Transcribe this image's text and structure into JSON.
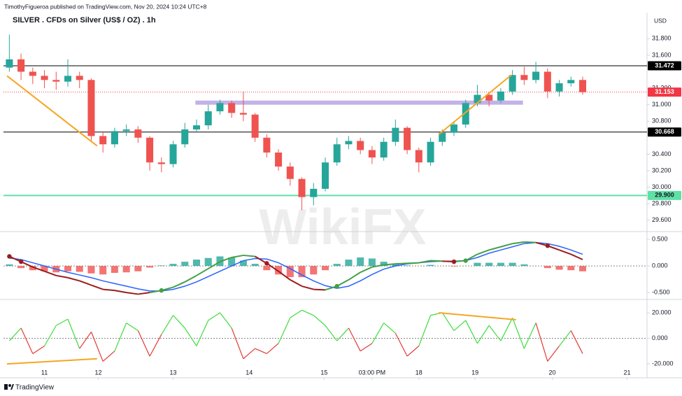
{
  "header": {
    "published": "TimothyFigueroa published on TradingView.com, Nov 20, 2024 10:24 UTC+8",
    "currency": "USD",
    "brand": "TradingView",
    "watermark": "WikiFX"
  },
  "chart_data": [
    {
      "type": "candlestick",
      "title": "SILVER . CFDs on Silver (US$ / OZ) . 1h",
      "xlim": [
        -0.5,
        54.5
      ],
      "ylim": [
        29.47,
        32.1
      ],
      "yticks": [
        {
          "value": 31.8,
          "label": "31.800"
        },
        {
          "value": 31.6,
          "label": "31.600"
        },
        {
          "value": 31.2,
          "label": "31.200"
        },
        {
          "value": 31.0,
          "label": "31.000"
        },
        {
          "value": 30.8,
          "label": "30.800"
        },
        {
          "value": 30.4,
          "label": "30.400"
        },
        {
          "value": 30.2,
          "label": "30.200"
        },
        {
          "value": 30.0,
          "label": "30.000"
        },
        {
          "value": 29.8,
          "label": "29.800"
        },
        {
          "value": 29.6,
          "label": "29.600"
        }
      ],
      "open": [
        31.45,
        31.55,
        31.4,
        31.35,
        31.3,
        31.28,
        31.35,
        31.3,
        30.62,
        30.52,
        30.68,
        30.7,
        30.6,
        30.3,
        30.28,
        30.52,
        30.7,
        30.75,
        30.92,
        31.02,
        30.9,
        30.88,
        30.6,
        30.42,
        30.25,
        30.1,
        29.88,
        29.98,
        30.3,
        30.52,
        30.56,
        30.45,
        30.36,
        30.55,
        30.72,
        30.45,
        30.3,
        30.55,
        30.66,
        30.76,
        31.02,
        31.12,
        31.05,
        31.16,
        31.36,
        31.3,
        31.4,
        31.16,
        31.26,
        31.3
      ],
      "high": [
        31.85,
        31.62,
        31.45,
        31.42,
        31.4,
        31.55,
        31.4,
        31.32,
        30.66,
        30.72,
        30.76,
        30.74,
        30.62,
        30.36,
        30.56,
        30.78,
        30.82,
        31.0,
        31.06,
        31.05,
        31.16,
        30.9,
        30.64,
        30.46,
        30.3,
        30.12,
        30.05,
        30.36,
        30.6,
        30.62,
        30.6,
        30.5,
        30.6,
        30.82,
        30.74,
        30.48,
        30.6,
        30.7,
        30.8,
        31.06,
        31.24,
        31.15,
        31.2,
        31.42,
        31.46,
        31.52,
        31.44,
        31.3,
        31.34,
        31.34
      ],
      "low": [
        31.4,
        31.3,
        31.25,
        31.2,
        31.18,
        31.22,
        31.2,
        30.55,
        30.42,
        30.48,
        30.62,
        30.54,
        30.2,
        30.18,
        30.24,
        30.48,
        30.66,
        30.7,
        30.88,
        30.84,
        30.8,
        30.55,
        30.36,
        30.2,
        30.02,
        29.72,
        29.78,
        29.95,
        30.26,
        30.46,
        30.4,
        30.28,
        30.32,
        30.5,
        30.4,
        30.18,
        30.26,
        30.5,
        30.62,
        30.72,
        30.98,
        30.98,
        31.02,
        31.12,
        31.24,
        31.26,
        31.08,
        31.1,
        31.22,
        31.12
      ],
      "close": [
        31.55,
        31.4,
        31.35,
        31.3,
        31.28,
        31.35,
        31.3,
        30.62,
        30.52,
        30.68,
        30.7,
        30.6,
        30.3,
        30.28,
        30.52,
        30.7,
        30.75,
        30.92,
        31.02,
        30.9,
        30.88,
        30.6,
        30.42,
        30.25,
        30.1,
        29.88,
        29.98,
        30.3,
        30.52,
        30.56,
        30.45,
        30.36,
        30.55,
        30.72,
        30.45,
        30.3,
        30.55,
        30.66,
        30.76,
        31.02,
        31.12,
        31.05,
        31.16,
        31.36,
        31.3,
        31.4,
        31.16,
        31.26,
        31.3,
        31.153
      ],
      "up_color": "#26a69a",
      "down_color": "#ef5350",
      "levels": [
        {
          "value": 31.472,
          "label": "31.472",
          "color": "#000000"
        },
        {
          "value": 30.668,
          "label": "30.668",
          "color": "#000000"
        },
        {
          "value": 29.9,
          "label": "29.900",
          "color": "#5fe0a5"
        }
      ],
      "last_price": {
        "value": 31.153,
        "label": "31.153",
        "color": "#f23645"
      },
      "zones": [
        {
          "x": [
            15.9,
            43.9
          ],
          "y": [
            31.0,
            31.05
          ],
          "color": "#b9a3e3"
        }
      ],
      "trendlines": [
        {
          "x": [
            -0.2,
            7.5
          ],
          "y": [
            31.35,
            30.5
          ],
          "color": "#f5a623"
        },
        {
          "x": [
            36.7,
            42.9
          ],
          "y": [
            30.64,
            31.36
          ],
          "color": "#f5a623"
        }
      ]
    },
    {
      "type": "macd",
      "xlim": [
        -0.5,
        54.5
      ],
      "ylim": [
        -0.59,
        0.62
      ],
      "yticks": [
        {
          "value": 0.5,
          "label": "0.500"
        },
        {
          "value": 0,
          "label": "0.000"
        },
        {
          "value": -0.5,
          "label": "-0.500"
        }
      ],
      "zero_line": true,
      "macd": [
        0.18,
        0.08,
        -0.02,
        -0.1,
        -0.18,
        -0.22,
        -0.28,
        -0.36,
        -0.44,
        -0.46,
        -0.5,
        -0.53,
        -0.5,
        -0.46,
        -0.4,
        -0.3,
        -0.18,
        -0.05,
        0.08,
        0.16,
        0.2,
        0.18,
        0.05,
        -0.1,
        -0.26,
        -0.38,
        -0.44,
        -0.45,
        -0.38,
        -0.26,
        -0.12,
        -0.02,
        0.02,
        0.04,
        0.05,
        0.06,
        0.1,
        0.09,
        0.08,
        0.1,
        0.22,
        0.3,
        0.36,
        0.42,
        0.45,
        0.44,
        0.38,
        0.3,
        0.22,
        0.12
      ],
      "signal": [
        0.15,
        0.12,
        0.06,
        0.0,
        -0.06,
        -0.12,
        -0.17,
        -0.22,
        -0.28,
        -0.33,
        -0.38,
        -0.43,
        -0.47,
        -0.47,
        -0.44,
        -0.38,
        -0.3,
        -0.2,
        -0.1,
        0.0,
        0.1,
        0.14,
        0.13,
        0.06,
        -0.05,
        -0.17,
        -0.28,
        -0.37,
        -0.42,
        -0.38,
        -0.28,
        -0.16,
        -0.06,
        0.0,
        0.04,
        0.06,
        0.08,
        0.09,
        0.09,
        0.1,
        0.16,
        0.24,
        0.3,
        0.36,
        0.42,
        0.44,
        0.42,
        0.37,
        0.3,
        0.22
      ],
      "histogram": [
        0.03,
        -0.04,
        -0.08,
        -0.1,
        -0.12,
        -0.1,
        -0.11,
        -0.14,
        -0.16,
        -0.13,
        -0.12,
        -0.1,
        -0.03,
        0.01,
        0.04,
        0.08,
        0.12,
        0.15,
        0.18,
        0.16,
        0.1,
        0.04,
        -0.08,
        -0.16,
        -0.21,
        -0.21,
        -0.16,
        -0.08,
        0.04,
        0.12,
        0.16,
        0.14,
        0.08,
        0.04,
        0.01,
        0.0,
        0.02,
        0.0,
        -0.01,
        0.0,
        0.06,
        0.06,
        0.06,
        0.06,
        0.03,
        0.0,
        -0.04,
        -0.07,
        -0.08,
        -0.1
      ],
      "macd_up_color": "#43a047",
      "macd_down_color": "#9b1c1c",
      "signal_color": "#2962ff",
      "hist_up_color": "#26a69a",
      "hist_down_color": "#ef5350"
    },
    {
      "type": "oscillator",
      "xlim": [
        -0.5,
        54.5
      ],
      "ylim": [
        -22.7,
        29.3
      ],
      "yticks": [
        {
          "value": 20,
          "label": "20.000"
        },
        {
          "value": 0,
          "label": "0.000"
        },
        {
          "value": -20,
          "label": "-20.000"
        }
      ],
      "xticks": [
        {
          "value": 3,
          "label": "11"
        },
        {
          "value": 7.6,
          "label": "12"
        },
        {
          "value": 14,
          "label": "13"
        },
        {
          "value": 20.5,
          "label": "14"
        },
        {
          "value": 26.9,
          "label": "15"
        },
        {
          "value": 31,
          "label": "03:00 PM"
        },
        {
          "value": 35,
          "label": "18"
        },
        {
          "value": 39.8,
          "label": "19"
        },
        {
          "value": 46.4,
          "label": "20"
        },
        {
          "value": 52.8,
          "label": "21"
        }
      ],
      "zero_line": true,
      "values": [
        -2,
        8,
        -12,
        -6,
        10,
        15,
        -8,
        5,
        -18,
        -10,
        12,
        6,
        -14,
        3,
        18,
        8,
        -6,
        14,
        20,
        8,
        -16,
        -8,
        -12,
        -4,
        16,
        22,
        18,
        10,
        -2,
        8,
        -10,
        -4,
        12,
        4,
        -14,
        -6,
        18,
        20,
        6,
        14,
        -4,
        10,
        -2,
        16,
        -8,
        12,
        -18,
        -6,
        6,
        -12
      ],
      "up_color": "#3fdc3f",
      "down_color": "#e53935",
      "trendlines": [
        {
          "x": [
            -0.2,
            7.5
          ],
          "y": [
            -20,
            -16
          ],
          "color": "#f5a623"
        },
        {
          "x": [
            36.7,
            43.3
          ],
          "y": [
            20,
            14.5
          ],
          "color": "#f5a623"
        }
      ]
    }
  ]
}
